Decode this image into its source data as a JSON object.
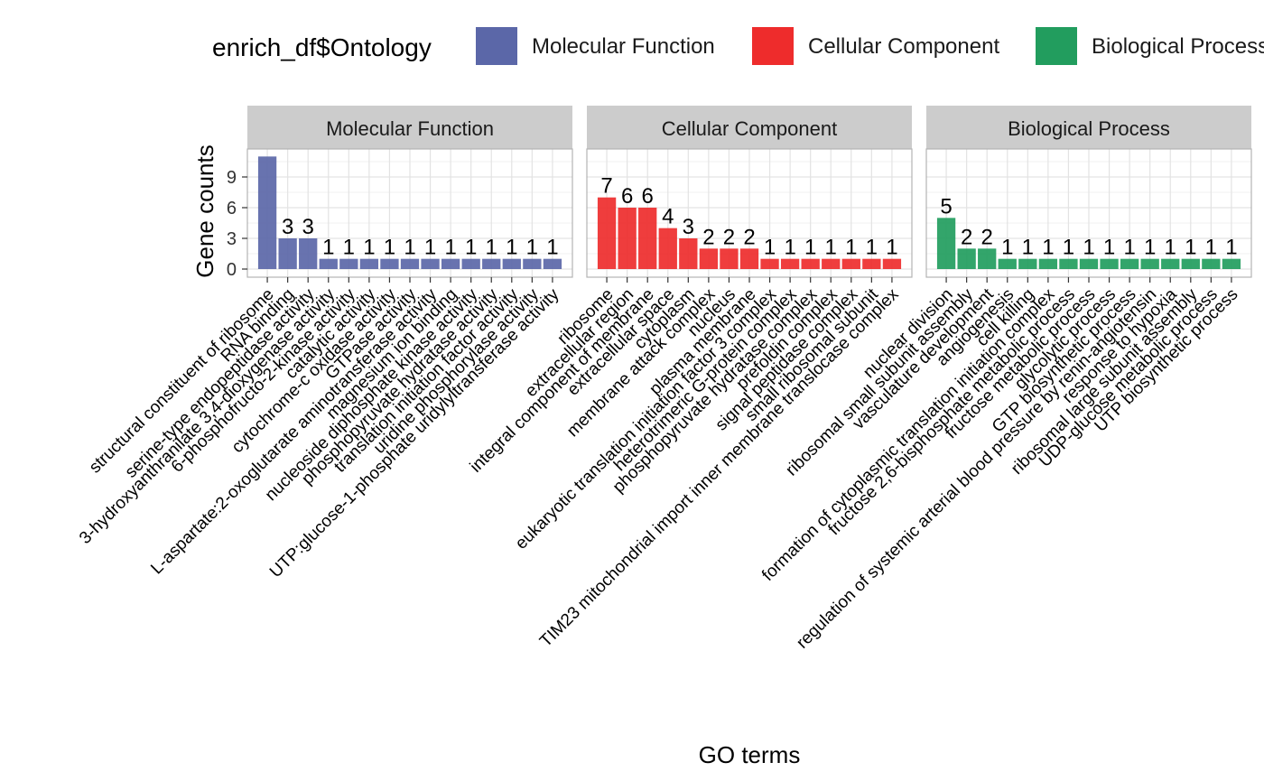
{
  "chart_data": {
    "type": "bar",
    "ylabel": "Gene counts",
    "xlabel": "GO terms",
    "ylim": [
      0,
      12
    ],
    "yticks": [
      0,
      3,
      6,
      9
    ],
    "grid": true,
    "legend": {
      "title": "enrich_df$Ontology",
      "placement": "top",
      "items": [
        {
          "name": "Molecular Function",
          "color": "#5B67A8"
        },
        {
          "name": "Cellular Component",
          "color": "#EE2C2C"
        },
        {
          "name": "Biological Process",
          "color": "#229D5E"
        }
      ]
    },
    "facets": [
      {
        "name": "Molecular Function",
        "color": "#5B67A8",
        "categories": [
          "structural constituent of ribosome",
          "RNA binding",
          "serine-type endopeptidase activity",
          "3-hydroxyanthranilate 3,4-dioxygenase activity",
          "6-phosphofructo-2-kinase activity",
          "catalytic activity",
          "cytochrome-c oxidase activity",
          "GTPase activity",
          "L-aspartate:2-oxoglutarate aminotransferase activity",
          "magnesium ion binding",
          "nucleoside diphosphate kinase activity",
          "phosphopyruvate hydratase activity",
          "translation initiation factor activity",
          "uridine phosphorylase activity",
          "UTP:glucose-1-phosphate uridylyltransferase activity"
        ],
        "values": [
          11,
          3,
          3,
          1,
          1,
          1,
          1,
          1,
          1,
          1,
          1,
          1,
          1,
          1,
          1
        ],
        "labels": [
          "",
          "3",
          "3",
          "1",
          "1",
          "1",
          "1",
          "1",
          "1",
          "1",
          "1",
          "1",
          "1",
          "1",
          "1"
        ]
      },
      {
        "name": "Cellular Component",
        "color": "#EE2C2C",
        "categories": [
          "ribosome",
          "extracellular region",
          "integral component of membrane",
          "extracellular space",
          "cytoplasm",
          "membrane attack complex",
          "nucleus",
          "plasma membrane",
          "eukaryotic translation initiation factor 3 complex",
          "heterotrimeric G-protein complex",
          "phosphopyruvate hydratase complex",
          "prefoldin complex",
          "signal peptidase complex",
          "small ribosomal subunit",
          "TIM23 mitochondrial import inner membrane translocase complex"
        ],
        "values": [
          7,
          6,
          6,
          4,
          3,
          2,
          2,
          2,
          1,
          1,
          1,
          1,
          1,
          1,
          1
        ],
        "labels": [
          "7",
          "6",
          "6",
          "4",
          "3",
          "2",
          "2",
          "2",
          "1",
          "1",
          "1",
          "1",
          "1",
          "1",
          "1"
        ]
      },
      {
        "name": "Biological Process",
        "color": "#229D5E",
        "categories": [
          "nuclear division",
          "ribosomal small subunit assembly",
          "vasculature development",
          "angiogenesis",
          "cell killing",
          "formation of cytoplasmic translation initiation complex",
          "fructose 2,6-bisphosphate metabolic process",
          "fructose metabolic process",
          "glycolytic process",
          "GTP biosynthetic process",
          "regulation of systemic arterial blood pressure by renin-angiotensin",
          "response to hypoxia",
          "ribosomal large subunit assembly",
          "UDP-glucose metabolic process",
          "UTP biosynthetic process"
        ],
        "values": [
          5,
          2,
          2,
          1,
          1,
          1,
          1,
          1,
          1,
          1,
          1,
          1,
          1,
          1,
          1
        ],
        "labels": [
          "5",
          "2",
          "2",
          "1",
          "1",
          "1",
          "1",
          "1",
          "1",
          "1",
          "1",
          "1",
          "1",
          "1",
          "1"
        ]
      }
    ]
  }
}
